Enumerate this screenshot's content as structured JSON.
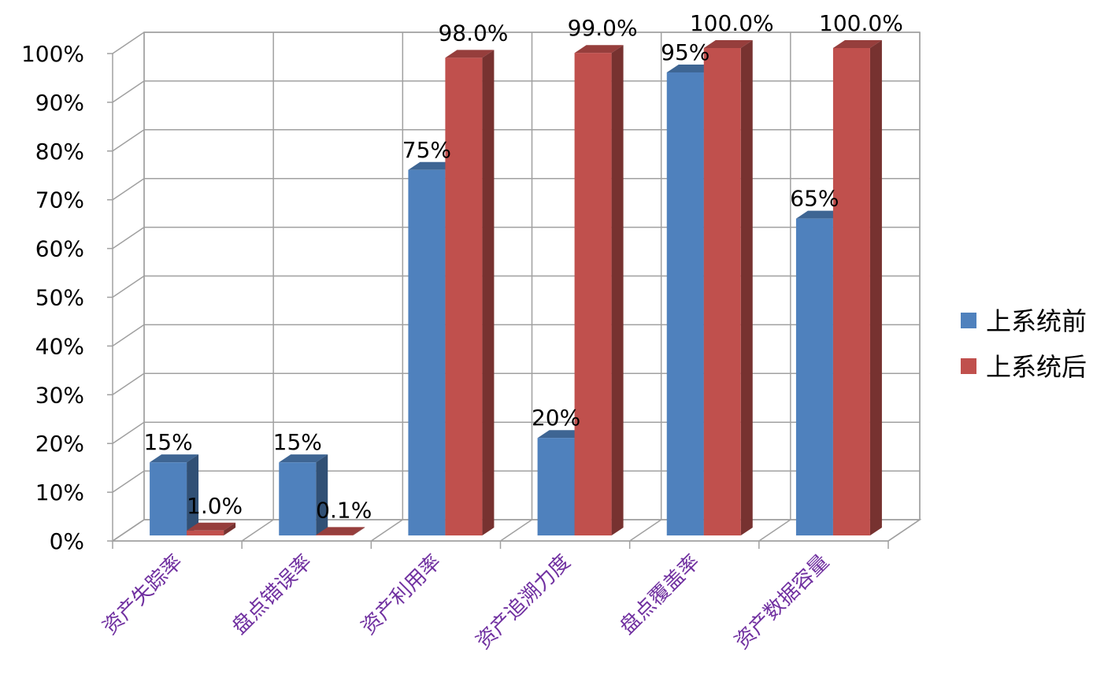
{
  "chart_data": {
    "type": "bar",
    "title": "",
    "xlabel": "",
    "ylabel": "",
    "ylim": [
      0,
      100
    ],
    "y_ticks": [
      "0%",
      "10%",
      "20%",
      "30%",
      "40%",
      "50%",
      "60%",
      "70%",
      "80%",
      "90%",
      "100%"
    ],
    "categories": [
      "资产失踪率",
      "盘点错误率",
      "资产利用率",
      "资产追溯力度",
      "盘点覆盖率",
      "资产数据容量"
    ],
    "series": [
      {
        "name": "上系统前",
        "color": "#4f81bd",
        "values": [
          15,
          15,
          75,
          20,
          95,
          65
        ],
        "labels": [
          "15%",
          "15%",
          "75%",
          "20%",
          "95%",
          "65%"
        ]
      },
      {
        "name": "上系统后",
        "color": "#c0504d",
        "values": [
          1.0,
          0.1,
          98.0,
          99.0,
          100.0,
          100.0
        ],
        "labels": [
          "1.0%",
          "0.1%",
          "98.0%",
          "99.0%",
          "100.0%",
          "100.0%"
        ]
      }
    ],
    "grid": true,
    "legend_position": "right",
    "style": "3d-clustered-column"
  }
}
